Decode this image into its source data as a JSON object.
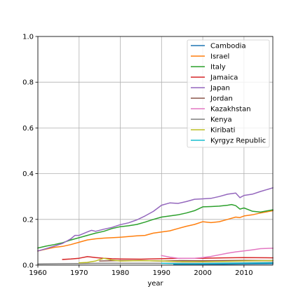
{
  "chart_data": {
    "type": "line",
    "title": "",
    "xlabel": "year",
    "ylabel": "",
    "xlim": [
      1960,
      2017
    ],
    "ylim": [
      0,
      1.0
    ],
    "xticks": [
      1960,
      1970,
      1980,
      1990,
      2000,
      2010
    ],
    "xtick_labels": [
      "1960",
      "1970",
      "1980",
      "1990",
      "2000",
      "2010"
    ],
    "yticks": [
      0.0,
      0.2,
      0.4,
      0.6,
      0.8,
      1.0
    ],
    "ytick_labels": [
      "0.0",
      "0.2",
      "0.4",
      "0.6",
      "0.8",
      "1.0"
    ],
    "grid": true,
    "legend_position": "top-right",
    "series": [
      {
        "name": "Cambodia",
        "color": "#1f77b4",
        "x": [
          1993,
          1995,
          2000,
          2005,
          2010,
          2017
        ],
        "y": [
          0.003,
          0.003,
          0.004,
          0.004,
          0.005,
          0.006
        ]
      },
      {
        "name": "Israel",
        "color": "#ff7f0e",
        "x": [
          1960,
          1962,
          1964,
          1966,
          1968,
          1970,
          1972,
          1974,
          1976,
          1978,
          1980,
          1982,
          1984,
          1986,
          1988,
          1990,
          1992,
          1994,
          1996,
          1998,
          2000,
          2002,
          2004,
          2006,
          2008,
          2009,
          2010,
          2012,
          2014,
          2017
        ],
        "y": [
          0.062,
          0.07,
          0.078,
          0.082,
          0.09,
          0.1,
          0.11,
          0.115,
          0.118,
          0.12,
          0.122,
          0.125,
          0.128,
          0.13,
          0.14,
          0.145,
          0.15,
          0.16,
          0.17,
          0.178,
          0.19,
          0.186,
          0.19,
          0.2,
          0.21,
          0.208,
          0.215,
          0.22,
          0.228,
          0.238
        ]
      },
      {
        "name": "Italy",
        "color": "#2ca02c",
        "x": [
          1960,
          1962,
          1964,
          1966,
          1968,
          1970,
          1972,
          1974,
          1976,
          1978,
          1980,
          1982,
          1984,
          1986,
          1988,
          1990,
          1992,
          1994,
          1996,
          1998,
          2000,
          2002,
          2004,
          2006,
          2007,
          2008,
          2009,
          2010,
          2012,
          2014,
          2017
        ],
        "y": [
          0.075,
          0.083,
          0.09,
          0.098,
          0.11,
          0.12,
          0.13,
          0.14,
          0.148,
          0.16,
          0.168,
          0.172,
          0.178,
          0.188,
          0.2,
          0.21,
          0.215,
          0.22,
          0.228,
          0.238,
          0.255,
          0.256,
          0.258,
          0.262,
          0.265,
          0.26,
          0.245,
          0.25,
          0.236,
          0.232,
          0.242
        ]
      },
      {
        "name": "Jamaica",
        "color": "#d62728",
        "x": [
          1966,
          1968,
          1970,
          1972,
          1974,
          1976,
          1978,
          1980,
          1985,
          1990,
          1995,
          2000,
          2005,
          2010,
          2017
        ],
        "y": [
          0.025,
          0.027,
          0.03,
          0.037,
          0.033,
          0.03,
          0.028,
          0.027,
          0.026,
          0.028,
          0.03,
          0.03,
          0.032,
          0.033,
          0.032
        ]
      },
      {
        "name": "Japan",
        "color": "#9467bd",
        "x": [
          1960,
          1962,
          1964,
          1966,
          1968,
          1969,
          1970,
          1972,
          1973,
          1974,
          1976,
          1978,
          1980,
          1982,
          1984,
          1986,
          1988,
          1990,
          1992,
          1994,
          1996,
          1998,
          2000,
          2002,
          2004,
          2006,
          2008,
          2009,
          2010,
          2012,
          2014,
          2017
        ],
        "y": [
          0.062,
          0.072,
          0.083,
          0.095,
          0.115,
          0.13,
          0.13,
          0.145,
          0.152,
          0.148,
          0.157,
          0.165,
          0.177,
          0.185,
          0.198,
          0.215,
          0.235,
          0.262,
          0.272,
          0.27,
          0.278,
          0.288,
          0.29,
          0.292,
          0.3,
          0.31,
          0.315,
          0.295,
          0.305,
          0.31,
          0.322,
          0.338
        ]
      },
      {
        "name": "Jordan",
        "color": "#8c564b",
        "x": [
          1975,
          1980,
          1985,
          1990,
          1995,
          2000,
          2005,
          2010,
          2017
        ],
        "y": [
          0.018,
          0.02,
          0.02,
          0.018,
          0.02,
          0.019,
          0.02,
          0.021,
          0.02
        ]
      },
      {
        "name": "Kazakhstan",
        "color": "#e377c2",
        "x": [
          1990,
          1992,
          1994,
          1996,
          1998,
          2000,
          2002,
          2004,
          2006,
          2008,
          2010,
          2012,
          2014,
          2017
        ],
        "y": [
          0.042,
          0.035,
          0.03,
          0.03,
          0.03,
          0.033,
          0.038,
          0.045,
          0.052,
          0.058,
          0.062,
          0.067,
          0.072,
          0.074
        ]
      },
      {
        "name": "Kenya",
        "color": "#7f7f7f",
        "x": [
          1960,
          1965,
          1970,
          1975,
          1980,
          1985,
          1990,
          1995,
          2000,
          2005,
          2010,
          2017
        ],
        "y": [
          0.005,
          0.006,
          0.007,
          0.008,
          0.008,
          0.008,
          0.008,
          0.008,
          0.008,
          0.009,
          0.01,
          0.012
        ]
      },
      {
        "name": "Kiribati",
        "color": "#bcbd22",
        "x": [
          1970,
          1972,
          1974,
          1976,
          1978,
          1980,
          1985,
          1990,
          1995,
          2000,
          2005,
          2010,
          2017
        ],
        "y": [
          0.01,
          0.012,
          0.018,
          0.03,
          0.022,
          0.018,
          0.02,
          0.018,
          0.015,
          0.015,
          0.016,
          0.018,
          0.02
        ]
      },
      {
        "name": "Kyrgyz Republic",
        "color": "#17becf",
        "x": [
          1990,
          1992,
          1994,
          1996,
          1998,
          2000,
          2005,
          2010,
          2017
        ],
        "y": [
          0.008,
          0.007,
          0.006,
          0.006,
          0.006,
          0.007,
          0.008,
          0.009,
          0.01
        ]
      }
    ]
  }
}
